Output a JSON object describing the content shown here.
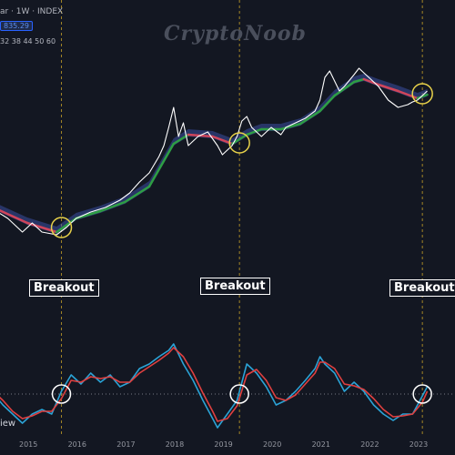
{
  "header": {
    "symbol_text": "ar · 1W · INDEX",
    "price_badge": "835.29",
    "ma_lengths": "32 38 44 50 60"
  },
  "watermark": "CryptoNoob",
  "breakout_labels": [
    "Breakout",
    "Breakout",
    "Breakout"
  ],
  "oscillator_label": "iew",
  "colors": {
    "background": "#131722",
    "price_line": "#ffffff",
    "ribbon_bull": "#2e9e44",
    "ribbon_bear": "#d0455a",
    "ribbon_fill": "#3a4fa0",
    "osc_fast": "#2ba3d6",
    "osc_slow": "#e04040",
    "highlight_circle": "#e8d24a",
    "vline": "#c9a227"
  },
  "chart_data": [
    {
      "type": "line",
      "title": "",
      "x_ticks": [
        "2015",
        "2016",
        "2017",
        "2018",
        "2019",
        "2020",
        "2021",
        "2022",
        "2023"
      ],
      "series": [
        {
          "points": [
            [
              2014.3,
              230
            ],
            [
              2014.6,
              240
            ],
            [
              2014.9,
              255
            ],
            [
              2015.1,
              245
            ],
            [
              2015.3,
              255
            ],
            [
              2015.6,
              258
            ],
            [
              2015.8,
              250
            ],
            [
              2016.0,
              240
            ],
            [
              2016.3,
              233
            ],
            [
              2016.6,
              228
            ],
            [
              2016.9,
              220
            ],
            [
              2017.1,
              212
            ],
            [
              2017.3,
              200
            ],
            [
              2017.5,
              190
            ],
            [
              2017.7,
              172
            ],
            [
              2017.8,
              160
            ],
            [
              2017.9,
              140
            ],
            [
              2018.0,
              118
            ],
            [
              2018.1,
              150
            ],
            [
              2018.2,
              135
            ],
            [
              2018.3,
              160
            ],
            [
              2018.5,
              150
            ],
            [
              2018.7,
              145
            ],
            [
              2018.9,
              160
            ],
            [
              2019.0,
              170
            ],
            [
              2019.2,
              160
            ],
            [
              2019.3,
              150
            ],
            [
              2019.4,
              133
            ],
            [
              2019.5,
              128
            ],
            [
              2019.6,
              140
            ],
            [
              2019.8,
              150
            ],
            [
              2020.0,
              140
            ],
            [
              2020.2,
              148
            ],
            [
              2020.3,
              140
            ],
            [
              2020.5,
              135
            ],
            [
              2020.7,
              130
            ],
            [
              2020.9,
              122
            ],
            [
              2021.0,
              110
            ],
            [
              2021.1,
              85
            ],
            [
              2021.2,
              78
            ],
            [
              2021.4,
              100
            ],
            [
              2021.5,
              95
            ],
            [
              2021.7,
              82
            ],
            [
              2021.8,
              75
            ],
            [
              2021.9,
              80
            ],
            [
              2022.1,
              90
            ],
            [
              2022.2,
              95
            ],
            [
              2022.4,
              110
            ],
            [
              2022.6,
              118
            ],
            [
              2022.8,
              115
            ],
            [
              2022.9,
              112
            ],
            [
              2023.0,
              110
            ],
            [
              2023.1,
              105
            ],
            [
              2023.2,
              100
            ]
          ]
        }
      ],
      "ma_ribbon": {
        "lengths": [
          32,
          38,
          44,
          50,
          60
        ],
        "points": [
          [
            2014.3,
            228
          ],
          [
            2015.0,
            245
          ],
          [
            2015.6,
            255
          ],
          [
            2016.0,
            240
          ],
          [
            2016.5,
            232
          ],
          [
            2017.0,
            222
          ],
          [
            2017.5,
            205
          ],
          [
            2018.0,
            158
          ],
          [
            2018.3,
            148
          ],
          [
            2018.8,
            150
          ],
          [
            2019.2,
            158
          ],
          [
            2019.5,
            148
          ],
          [
            2019.8,
            142
          ],
          [
            2020.2,
            142
          ],
          [
            2020.6,
            136
          ],
          [
            2021.0,
            122
          ],
          [
            2021.3,
            105
          ],
          [
            2021.7,
            90
          ],
          [
            2021.9,
            87
          ],
          [
            2022.2,
            93
          ],
          [
            2022.6,
            100
          ],
          [
            2023.0,
            108
          ],
          [
            2023.2,
            104
          ]
        ]
      },
      "highlight_points": [
        [
          2015.7,
          250
        ],
        [
          2019.35,
          157
        ],
        [
          2023.1,
          103
        ]
      ],
      "breakout_x": [
        2015.7,
        2019.35,
        2023.1
      ]
    },
    {
      "type": "line",
      "title": "",
      "series": [
        {
          "color_key": "osc_fast",
          "points": [
            [
              2014.3,
              432
            ],
            [
              2014.5,
              445
            ],
            [
              2014.7,
              455
            ],
            [
              2014.9,
              465
            ],
            [
              2015.1,
              455
            ],
            [
              2015.3,
              450
            ],
            [
              2015.5,
              455
            ],
            [
              2015.7,
              430
            ],
            [
              2015.9,
              412
            ],
            [
              2016.1,
              422
            ],
            [
              2016.3,
              410
            ],
            [
              2016.5,
              420
            ],
            [
              2016.7,
              412
            ],
            [
              2016.9,
              425
            ],
            [
              2017.1,
              420
            ],
            [
              2017.3,
              405
            ],
            [
              2017.5,
              400
            ],
            [
              2017.7,
              392
            ],
            [
              2017.9,
              385
            ],
            [
              2018.0,
              378
            ],
            [
              2018.2,
              400
            ],
            [
              2018.4,
              418
            ],
            [
              2018.6,
              440
            ],
            [
              2018.8,
              460
            ],
            [
              2018.9,
              470
            ],
            [
              2019.1,
              455
            ],
            [
              2019.3,
              440
            ],
            [
              2019.5,
              400
            ],
            [
              2019.7,
              410
            ],
            [
              2019.9,
              425
            ],
            [
              2020.1,
              445
            ],
            [
              2020.3,
              440
            ],
            [
              2020.5,
              430
            ],
            [
              2020.7,
              418
            ],
            [
              2020.9,
              405
            ],
            [
              2021.0,
              392
            ],
            [
              2021.1,
              400
            ],
            [
              2021.3,
              410
            ],
            [
              2021.5,
              430
            ],
            [
              2021.7,
              420
            ],
            [
              2021.9,
              430
            ],
            [
              2022.1,
              445
            ],
            [
              2022.3,
              455
            ],
            [
              2022.5,
              462
            ],
            [
              2022.7,
              455
            ],
            [
              2022.9,
              455
            ],
            [
              2023.1,
              435
            ],
            [
              2023.2,
              425
            ]
          ]
        },
        {
          "color_key": "osc_slow",
          "points": [
            [
              2014.3,
              430
            ],
            [
              2014.5,
              440
            ],
            [
              2014.7,
              452
            ],
            [
              2014.9,
              460
            ],
            [
              2015.1,
              457
            ],
            [
              2015.3,
              452
            ],
            [
              2015.5,
              452
            ],
            [
              2015.7,
              438
            ],
            [
              2015.9,
              418
            ],
            [
              2016.1,
              420
            ],
            [
              2016.3,
              414
            ],
            [
              2016.5,
              416
            ],
            [
              2016.7,
              414
            ],
            [
              2016.9,
              420
            ],
            [
              2017.1,
              420
            ],
            [
              2017.3,
              410
            ],
            [
              2017.5,
              403
            ],
            [
              2017.7,
              396
            ],
            [
              2017.9,
              388
            ],
            [
              2018.0,
              382
            ],
            [
              2018.2,
              392
            ],
            [
              2018.4,
              410
            ],
            [
              2018.6,
              432
            ],
            [
              2018.8,
              452
            ],
            [
              2018.9,
              463
            ],
            [
              2019.1,
              460
            ],
            [
              2019.3,
              446
            ],
            [
              2019.5,
              412
            ],
            [
              2019.7,
              406
            ],
            [
              2019.9,
              418
            ],
            [
              2020.1,
              437
            ],
            [
              2020.3,
              440
            ],
            [
              2020.5,
              434
            ],
            [
              2020.7,
              422
            ],
            [
              2020.9,
              410
            ],
            [
              2021.0,
              398
            ],
            [
              2021.1,
              398
            ],
            [
              2021.3,
              405
            ],
            [
              2021.5,
              422
            ],
            [
              2021.7,
              424
            ],
            [
              2021.9,
              428
            ],
            [
              2022.1,
              438
            ],
            [
              2022.3,
              450
            ],
            [
              2022.5,
              458
            ],
            [
              2022.7,
              457
            ],
            [
              2022.9,
              455
            ],
            [
              2023.1,
              442
            ],
            [
              2023.2,
              430
            ]
          ]
        }
      ],
      "zero_line": 433,
      "highlight_points": [
        [
          2015.7,
          433
        ],
        [
          2019.35,
          433
        ],
        [
          2023.1,
          433
        ]
      ]
    }
  ]
}
